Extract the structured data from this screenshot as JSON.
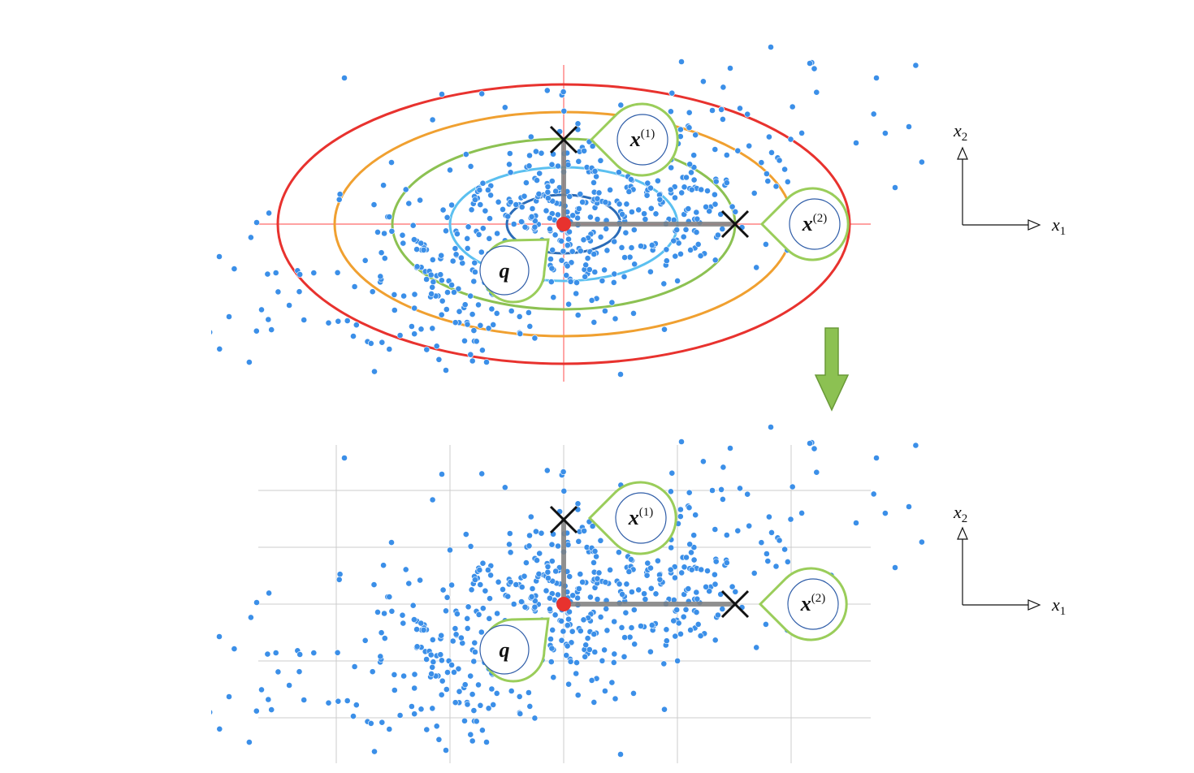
{
  "colors": {
    "background": "#ffffff",
    "point": "#3b8fe8",
    "center": "#e8322e",
    "crosshair": "#ff6b6b",
    "grid": "#cccccc",
    "arrow": "#8cc152",
    "arrow_stroke": "#6a9a38",
    "callout": "#9acd5a",
    "callout_inner": "#2f5da8",
    "ellipses": [
      "#e8322e",
      "#f0a030",
      "#8cc152",
      "#5bc0f0",
      "#2b6cb8"
    ]
  },
  "icons": {
    "point_marker": "cross-icon",
    "transform_arrow": "arrow-down-icon",
    "callout": "teardrop-callout-icon"
  },
  "labels": {
    "axis_x1_base": "x",
    "axis_x1_sub": "1",
    "axis_x2_base": "x",
    "axis_x2_sub": "2",
    "callout_x1_base": "x",
    "callout_x1_sup": "(1)",
    "callout_x2_base": "x",
    "callout_x2_sup": "(2)",
    "callout_q": "q"
  }
}
